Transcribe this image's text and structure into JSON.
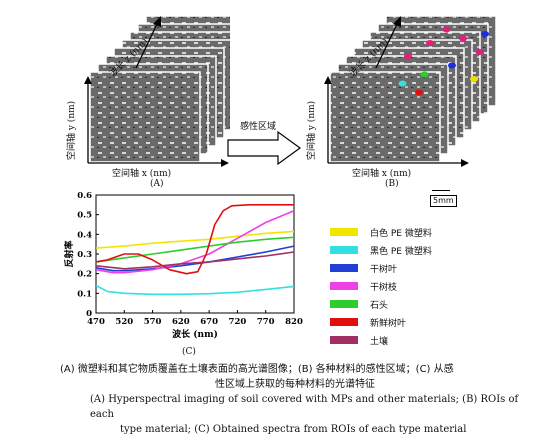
{
  "panel_a": {
    "y_axis": "空间轴 y (nm)",
    "x_axis": "空间轴 x (nm)",
    "z_axis": "波长 z (nm)",
    "tag": "(A)"
  },
  "arrow_label": "感性区域",
  "panel_b": {
    "y_axis": "空间轴 y (nm)",
    "x_axis": "空间轴 x (nm)",
    "z_axis": "波长 z (nm)",
    "tag": "(B)",
    "scale_bar": "5mm"
  },
  "panel_c": {
    "tag": "(C)"
  },
  "chart_data": {
    "type": "line",
    "xlabel": "波长 (nm)",
    "ylabel": "反射率",
    "xlim": [
      470,
      820
    ],
    "ylim": [
      0,
      0.6
    ],
    "x_ticks": [
      "470",
      "520",
      "570",
      "620",
      "670",
      "720",
      "770",
      "820"
    ],
    "y_ticks": [
      "0",
      "0.1",
      "0.2",
      "0.3",
      "0.4",
      "0.5",
      "0.6"
    ],
    "legend_position": "right",
    "series": [
      {
        "name": "白色 PE 微塑料",
        "color": "#f2e600",
        "x": [
          470,
          520,
          570,
          620,
          670,
          720,
          770,
          820
        ],
        "y": [
          0.33,
          0.34,
          0.355,
          0.365,
          0.375,
          0.39,
          0.405,
          0.415
        ]
      },
      {
        "name": "黑色 PE 微塑料",
        "color": "#33e0e0",
        "x": [
          470,
          490,
          520,
          570,
          620,
          670,
          720,
          770,
          820
        ],
        "y": [
          0.14,
          0.11,
          0.1,
          0.095,
          0.095,
          0.098,
          0.105,
          0.12,
          0.135
        ]
      },
      {
        "name": "干树叶",
        "color": "#1f3fd6",
        "x": [
          470,
          500,
          520,
          570,
          620,
          670,
          720,
          770,
          820
        ],
        "y": [
          0.23,
          0.215,
          0.215,
          0.225,
          0.24,
          0.26,
          0.285,
          0.31,
          0.34
        ]
      },
      {
        "name": "干树枝",
        "color": "#f040e8",
        "x": [
          470,
          500,
          520,
          570,
          620,
          670,
          720,
          770,
          820
        ],
        "y": [
          0.22,
          0.205,
          0.205,
          0.22,
          0.25,
          0.3,
          0.38,
          0.46,
          0.52
        ]
      },
      {
        "name": "石头",
        "color": "#2ecc2e",
        "x": [
          470,
          520,
          570,
          620,
          670,
          720,
          770,
          820
        ],
        "y": [
          0.26,
          0.28,
          0.3,
          0.32,
          0.34,
          0.36,
          0.375,
          0.385
        ]
      },
      {
        "name": "新鲜树叶",
        "color": "#e01010",
        "x": [
          470,
          490,
          520,
          545,
          570,
          600,
          630,
          650,
          665,
          680,
          695,
          710,
          740,
          770,
          820
        ],
        "y": [
          0.26,
          0.27,
          0.3,
          0.3,
          0.27,
          0.22,
          0.2,
          0.21,
          0.3,
          0.45,
          0.52,
          0.545,
          0.55,
          0.55,
          0.55
        ]
      },
      {
        "name": "土壤",
        "color": "#a03060",
        "x": [
          470,
          520,
          570,
          620,
          670,
          720,
          770,
          820
        ],
        "y": [
          0.24,
          0.225,
          0.235,
          0.25,
          0.26,
          0.275,
          0.29,
          0.31
        ]
      }
    ]
  },
  "caption": {
    "zh_line1": "(A) 微塑料和其它物质覆盖在土壤表面的高光谱图像；(B) 各种材料的感性区域；(C) 从感",
    "zh_line2": "性区域上获取的每种材料的光谱特征",
    "en_line1": "(A) Hyperspectral imaging of soil covered with MPs and other materials; (B) ROIs of each",
    "en_line2": "type material; (C) Obtained spectra from ROIs of each type material"
  }
}
